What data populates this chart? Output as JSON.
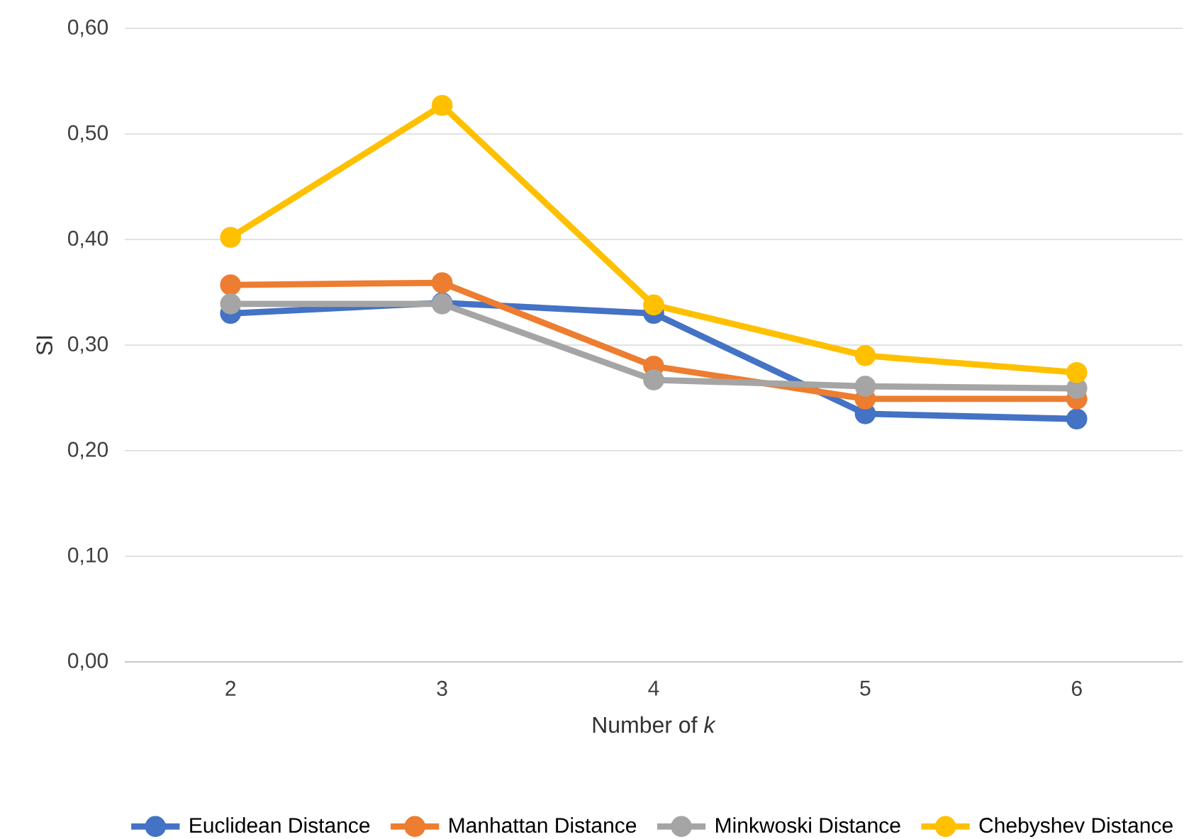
{
  "chart_data": {
    "type": "line",
    "xlabel": "Number of *k*",
    "ylabel": "SI",
    "categories": [
      "2",
      "3",
      "4",
      "5",
      "6"
    ],
    "series": [
      {
        "name": "Euclidean Distance",
        "color": "#4472c4",
        "values": [
          0.33,
          0.34,
          0.33,
          0.235,
          0.23
        ]
      },
      {
        "name": "Manhattan Distance",
        "color": "#ed7d31",
        "values": [
          0.357,
          0.359,
          0.28,
          0.249,
          0.249
        ]
      },
      {
        "name": "Minkwoski Distance",
        "color": "#a5a5a5",
        "values": [
          0.339,
          0.339,
          0.267,
          0.261,
          0.259
        ]
      },
      {
        "name": "Chebyshev Distance",
        "color": "#ffc000",
        "values": [
          0.402,
          0.527,
          0.338,
          0.29,
          0.274
        ]
      }
    ],
    "ylim": [
      0,
      0.6
    ],
    "yticks": [
      {
        "value": 0,
        "label": "0,00"
      },
      {
        "value": 0.1,
        "label": "0,10"
      },
      {
        "value": 0.2,
        "label": "0,20"
      },
      {
        "value": 0.3,
        "label": "0,30"
      },
      {
        "value": 0.4,
        "label": "0,40"
      },
      {
        "value": 0.5,
        "label": "0,50"
      },
      {
        "value": 0.6,
        "label": "0,60"
      }
    ],
    "grid": "y",
    "legend": "bottom",
    "marker": "circle",
    "line_style": "solid"
  }
}
